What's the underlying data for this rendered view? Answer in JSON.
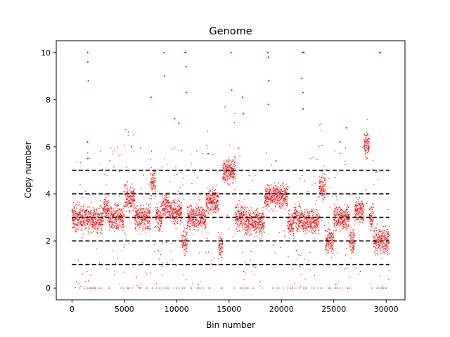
{
  "chart_data": {
    "type": "scatter",
    "title": "Genome",
    "xlabel": "Bin number",
    "ylabel": "Copy number",
    "xlim": [
      -1500,
      31800
    ],
    "ylim": [
      -0.5,
      10.5
    ],
    "x_ticks": [
      0,
      5000,
      10000,
      15000,
      20000,
      25000,
      30000
    ],
    "y_ticks": [
      0,
      2,
      4,
      6,
      8,
      10
    ],
    "grid": false,
    "legend": "none",
    "point_color": "#ff0000",
    "n_bins": 30300,
    "reference_lines": [
      {
        "y": 1,
        "x_range": [
          0,
          30300
        ],
        "style": "dashed",
        "color": "#000000"
      },
      {
        "y": 2,
        "x_range": [
          0,
          30300
        ],
        "style": "dashed",
        "color": "#000000"
      },
      {
        "y": 3,
        "x_range": [
          0,
          30300
        ],
        "style": "dashed",
        "color": "#000000"
      },
      {
        "y": 4,
        "x_range": [
          0,
          30300
        ],
        "style": "dashed",
        "color": "#000000"
      },
      {
        "y": 5,
        "x_range": [
          0,
          30300
        ],
        "style": "dashed",
        "color": "#000000"
      }
    ],
    "segments": [
      {
        "x_start": 0,
        "x_end": 1500,
        "level": 3.0
      },
      {
        "x_start": 1500,
        "x_end": 3000,
        "level": 2.9
      },
      {
        "x_start": 3000,
        "x_end": 3500,
        "level": 3.3
      },
      {
        "x_start": 3500,
        "x_end": 5000,
        "level": 3.0
      },
      {
        "x_start": 5000,
        "x_end": 6000,
        "level": 3.8
      },
      {
        "x_start": 6000,
        "x_end": 7500,
        "level": 3.0
      },
      {
        "x_start": 7500,
        "x_end": 8000,
        "level": 4.5
      },
      {
        "x_start": 8000,
        "x_end": 8600,
        "level": 3.0
      },
      {
        "x_start": 8600,
        "x_end": 9300,
        "level": 3.5
      },
      {
        "x_start": 9300,
        "x_end": 10500,
        "level": 3.2
      },
      {
        "x_start": 10500,
        "x_end": 11000,
        "level": 2.0
      },
      {
        "x_start": 11000,
        "x_end": 12800,
        "level": 3.0
      },
      {
        "x_start": 12800,
        "x_end": 14000,
        "level": 3.7
      },
      {
        "x_start": 14000,
        "x_end": 14400,
        "level": 1.8
      },
      {
        "x_start": 14400,
        "x_end": 15600,
        "level": 5.0
      },
      {
        "x_start": 15600,
        "x_end": 16500,
        "level": 3.0
      },
      {
        "x_start": 16500,
        "x_end": 18400,
        "level": 2.8
      },
      {
        "x_start": 18400,
        "x_end": 20600,
        "level": 3.9
      },
      {
        "x_start": 20600,
        "x_end": 21200,
        "level": 2.7
      },
      {
        "x_start": 21200,
        "x_end": 22000,
        "level": 3.0
      },
      {
        "x_start": 22000,
        "x_end": 23600,
        "level": 2.8
      },
      {
        "x_start": 23600,
        "x_end": 24200,
        "level": 4.3
      },
      {
        "x_start": 24200,
        "x_end": 25000,
        "level": 2.0
      },
      {
        "x_start": 25000,
        "x_end": 26500,
        "level": 3.0
      },
      {
        "x_start": 26500,
        "x_end": 27000,
        "level": 2.0
      },
      {
        "x_start": 27000,
        "x_end": 27900,
        "level": 3.3
      },
      {
        "x_start": 27900,
        "x_end": 28400,
        "level": 6.1
      },
      {
        "x_start": 28400,
        "x_end": 28800,
        "level": 3.0
      },
      {
        "x_start": 28800,
        "x_end": 30300,
        "level": 2.0
      }
    ],
    "sparse_points": [
      {
        "x": 1500,
        "y": 10
      },
      {
        "x": 1520,
        "y": 9.6
      },
      {
        "x": 1560,
        "y": 8.8
      },
      {
        "x": 1490,
        "y": 6.2
      },
      {
        "x": 1510,
        "y": 5.5
      },
      {
        "x": 8800,
        "y": 10
      },
      {
        "x": 8850,
        "y": 9.0
      },
      {
        "x": 10800,
        "y": 10
      },
      {
        "x": 10850,
        "y": 10
      },
      {
        "x": 10900,
        "y": 9.4
      },
      {
        "x": 10950,
        "y": 8.3
      },
      {
        "x": 15200,
        "y": 10
      },
      {
        "x": 15250,
        "y": 8.4
      },
      {
        "x": 18700,
        "y": 10
      },
      {
        "x": 18750,
        "y": 9.8
      },
      {
        "x": 18800,
        "y": 8.8
      },
      {
        "x": 18750,
        "y": 7.8
      },
      {
        "x": 22000,
        "y": 10
      },
      {
        "x": 22100,
        "y": 10
      },
      {
        "x": 22150,
        "y": 10
      },
      {
        "x": 21950,
        "y": 8.9
      },
      {
        "x": 22050,
        "y": 8.3
      },
      {
        "x": 22080,
        "y": 7.6
      },
      {
        "x": 29400,
        "y": 10
      },
      {
        "x": 29450,
        "y": 10
      },
      {
        "x": 16300,
        "y": 8.1
      },
      {
        "x": 16350,
        "y": 7.4
      },
      {
        "x": 5700,
        "y": 6.0
      },
      {
        "x": 7550,
        "y": 8.1
      },
      {
        "x": 9800,
        "y": 7.2
      },
      {
        "x": 10200,
        "y": 7.0
      },
      {
        "x": 13000,
        "y": 5.7
      },
      {
        "x": 26200,
        "y": 6.8
      },
      {
        "x": 25600,
        "y": 6.2
      }
    ]
  }
}
